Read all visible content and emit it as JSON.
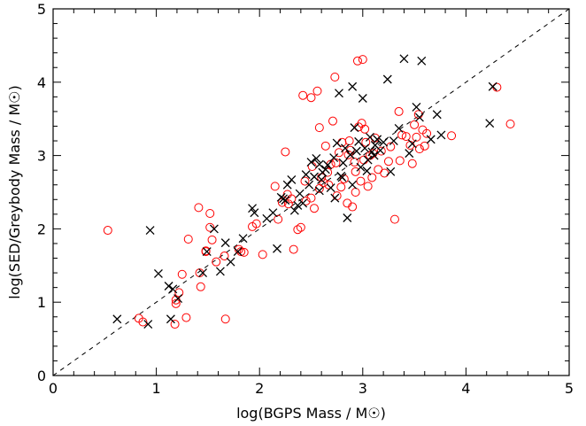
{
  "chart_data": {
    "type": "scatter",
    "xlabel": "log(BGPS Mass / M☉)",
    "ylabel": "log(SED/Greybody Mass / M☉)",
    "xlim": [
      0,
      5
    ],
    "ylim": [
      0,
      5
    ],
    "xticks": [
      "0",
      "1",
      "2",
      "3",
      "4",
      "5"
    ],
    "yticks": [
      "0",
      "1",
      "2",
      "3",
      "4",
      "5"
    ],
    "minor_ticks_per_major": 5,
    "reference_line": {
      "style": "dashed",
      "x": [
        0,
        5
      ],
      "y": [
        0,
        5
      ],
      "color": "#000000"
    },
    "series": [
      {
        "marker": "circle",
        "color": "#ff0000",
        "points": [
          [
            0.53,
            1.98
          ],
          [
            0.83,
            0.78
          ],
          [
            0.87,
            0.73
          ],
          [
            1.18,
            0.7
          ],
          [
            1.19,
            1.03
          ],
          [
            1.19,
            0.98
          ],
          [
            1.22,
            1.13
          ],
          [
            1.25,
            1.38
          ],
          [
            1.29,
            0.79
          ],
          [
            1.31,
            1.86
          ],
          [
            1.41,
            2.29
          ],
          [
            1.42,
            1.4
          ],
          [
            1.43,
            1.21
          ],
          [
            1.48,
            1.7
          ],
          [
            1.48,
            1.69
          ],
          [
            1.52,
            2.21
          ],
          [
            1.52,
            2.02
          ],
          [
            1.54,
            1.85
          ],
          [
            1.58,
            1.55
          ],
          [
            1.66,
            1.63
          ],
          [
            1.67,
            0.77
          ],
          [
            1.8,
            1.72
          ],
          [
            1.82,
            1.69
          ],
          [
            1.85,
            1.68
          ],
          [
            1.93,
            2.03
          ],
          [
            1.97,
            2.07
          ],
          [
            2.03,
            1.65
          ],
          [
            2.15,
            2.58
          ],
          [
            2.18,
            2.13
          ],
          [
            2.22,
            2.36
          ],
          [
            2.25,
            3.05
          ],
          [
            2.27,
            2.47
          ],
          [
            2.31,
            2.41
          ],
          [
            2.33,
            1.72
          ],
          [
            2.37,
            1.99
          ],
          [
            2.4,
            2.02
          ],
          [
            2.42,
            3.82
          ],
          [
            2.45,
            2.38
          ],
          [
            2.5,
            2.42
          ],
          [
            2.5,
            3.79
          ],
          [
            2.51,
            2.85
          ],
          [
            2.53,
            2.28
          ],
          [
            2.56,
            3.88
          ],
          [
            2.58,
            3.38
          ],
          [
            2.6,
            2.7
          ],
          [
            2.62,
            2.63
          ],
          [
            2.64,
            3.13
          ],
          [
            2.67,
            2.6
          ],
          [
            2.69,
            2.88
          ],
          [
            2.71,
            3.47
          ],
          [
            2.73,
            4.07
          ],
          [
            2.74,
            2.9
          ],
          [
            2.75,
            2.45
          ],
          [
            2.77,
            3.04
          ],
          [
            2.79,
            2.57
          ],
          [
            2.8,
            3.18
          ],
          [
            2.82,
            2.68
          ],
          [
            2.85,
            2.35
          ],
          [
            2.87,
            3.2
          ],
          [
            2.88,
            3.07
          ],
          [
            2.9,
            2.3
          ],
          [
            2.92,
            2.91
          ],
          [
            2.93,
            2.78
          ],
          [
            2.95,
            4.29
          ],
          [
            2.96,
            3.39
          ],
          [
            2.98,
            2.65
          ],
          [
            2.99,
            3.44
          ],
          [
            3.0,
            4.31
          ],
          [
            3.01,
            2.94
          ],
          [
            3.03,
            3.18
          ],
          [
            3.05,
            2.58
          ],
          [
            3.07,
            3.0
          ],
          [
            3.09,
            2.7
          ],
          [
            3.12,
            3.24
          ],
          [
            3.15,
            2.81
          ],
          [
            3.18,
            3.06
          ],
          [
            3.21,
            2.76
          ],
          [
            3.25,
            2.92
          ],
          [
            3.27,
            3.12
          ],
          [
            3.31,
            2.13
          ],
          [
            3.35,
            3.6
          ],
          [
            3.38,
            3.28
          ],
          [
            3.42,
            3.26
          ],
          [
            3.46,
            3.14
          ],
          [
            3.48,
            2.89
          ],
          [
            3.5,
            3.42
          ],
          [
            3.52,
            3.25
          ],
          [
            3.55,
            3.09
          ],
          [
            3.58,
            3.35
          ],
          [
            3.6,
            3.13
          ],
          [
            3.62,
            3.3
          ],
          [
            3.86,
            3.27
          ],
          [
            4.3,
            3.93
          ],
          [
            4.43,
            3.43
          ],
          [
            2.28,
            2.34
          ],
          [
            2.44,
            2.65
          ],
          [
            2.58,
            2.55
          ],
          [
            2.66,
            2.77
          ],
          [
            2.86,
            3.01
          ],
          [
            2.93,
            2.5
          ],
          [
            3.02,
            3.36
          ],
          [
            3.1,
            3.03
          ],
          [
            3.36,
            2.93
          ],
          [
            3.54,
            3.56
          ]
        ]
      },
      {
        "marker": "x",
        "color": "#000000",
        "points": [
          [
            0.62,
            0.77
          ],
          [
            0.92,
            0.7
          ],
          [
            0.94,
            1.98
          ],
          [
            1.02,
            1.39
          ],
          [
            1.12,
            1.22
          ],
          [
            1.14,
            0.77
          ],
          [
            1.16,
            1.18
          ],
          [
            1.21,
            1.05
          ],
          [
            1.45,
            1.4
          ],
          [
            1.49,
            1.69
          ],
          [
            1.56,
            2.0
          ],
          [
            1.62,
            1.42
          ],
          [
            1.67,
            1.81
          ],
          [
            1.72,
            1.55
          ],
          [
            1.79,
            1.69
          ],
          [
            1.84,
            1.87
          ],
          [
            1.93,
            2.28
          ],
          [
            1.95,
            2.22
          ],
          [
            2.07,
            2.14
          ],
          [
            2.13,
            2.22
          ],
          [
            2.17,
            1.73
          ],
          [
            2.21,
            2.43
          ],
          [
            2.23,
            2.41
          ],
          [
            2.25,
            2.39
          ],
          [
            2.27,
            2.6
          ],
          [
            2.31,
            2.67
          ],
          [
            2.34,
            2.25
          ],
          [
            2.37,
            2.32
          ],
          [
            2.39,
            2.48
          ],
          [
            2.42,
            2.35
          ],
          [
            2.45,
            2.74
          ],
          [
            2.48,
            2.6
          ],
          [
            2.5,
            2.91
          ],
          [
            2.53,
            2.71
          ],
          [
            2.55,
            2.96
          ],
          [
            2.58,
            2.52
          ],
          [
            2.6,
            2.67
          ],
          [
            2.61,
            2.77
          ],
          [
            2.64,
            2.81
          ],
          [
            2.66,
            2.87
          ],
          [
            2.69,
            2.56
          ],
          [
            2.72,
            2.97
          ],
          [
            2.75,
            3.17
          ],
          [
            2.77,
            3.85
          ],
          [
            2.79,
            2.72
          ],
          [
            2.81,
            2.9
          ],
          [
            2.83,
            3.1
          ],
          [
            2.85,
            2.15
          ],
          [
            2.88,
            3.01
          ],
          [
            2.9,
            3.94
          ],
          [
            2.92,
            3.38
          ],
          [
            2.94,
            3.06
          ],
          [
            2.96,
            3.19
          ],
          [
            2.98,
            2.84
          ],
          [
            3.0,
            3.78
          ],
          [
            3.02,
            3.1
          ],
          [
            3.04,
            2.79
          ],
          [
            3.07,
            3.25
          ],
          [
            3.09,
            3.05
          ],
          [
            3.11,
            3.0
          ],
          [
            3.14,
            3.22
          ],
          [
            3.17,
            3.07
          ],
          [
            3.2,
            3.18
          ],
          [
            3.24,
            4.04
          ],
          [
            3.27,
            2.78
          ],
          [
            3.3,
            3.2
          ],
          [
            3.35,
            3.37
          ],
          [
            3.4,
            4.32
          ],
          [
            3.45,
            3.03
          ],
          [
            3.48,
            3.16
          ],
          [
            3.52,
            3.66
          ],
          [
            3.55,
            3.52
          ],
          [
            3.57,
            4.29
          ],
          [
            3.66,
            3.22
          ],
          [
            3.72,
            3.56
          ],
          [
            3.76,
            3.28
          ],
          [
            4.23,
            3.44
          ],
          [
            4.26,
            3.94
          ],
          [
            2.58,
            2.88
          ],
          [
            2.73,
            2.42
          ],
          [
            2.8,
            2.7
          ],
          [
            2.9,
            2.6
          ],
          [
            3.05,
            2.94
          ],
          [
            3.12,
            3.14
          ]
        ]
      }
    ]
  }
}
